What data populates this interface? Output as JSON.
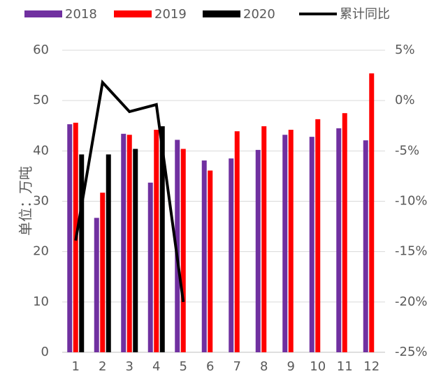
{
  "chart_data": {
    "type": "bar-line",
    "y_label": "单位：万吨",
    "categories": [
      "1",
      "2",
      "3",
      "4",
      "5",
      "6",
      "7",
      "8",
      "9",
      "10",
      "11",
      "12"
    ],
    "series": [
      {
        "name": "2018",
        "color": "#7030a0",
        "values": [
          45.3,
          26.7,
          43.4,
          33.7,
          42.2,
          38.1,
          38.5,
          40.2,
          43.2,
          42.8,
          44.5,
          42.1
        ]
      },
      {
        "name": "2019",
        "color": "#ff0000",
        "values": [
          45.6,
          31.7,
          43.2,
          44.2,
          40.4,
          36.1,
          43.9,
          44.9,
          44.2,
          46.3,
          47.5,
          55.4
        ]
      },
      {
        "name": "2020",
        "color": "#000000",
        "values": [
          39.3,
          39.3,
          40.4,
          44.9,
          null,
          null,
          null,
          null,
          null,
          null,
          null,
          null
        ]
      },
      {
        "name": "累计同比",
        "color": "#000000",
        "type": "line",
        "axis": "y2",
        "values": [
          -13.9,
          1.8,
          -1.1,
          -0.4,
          -20.0,
          null,
          null,
          null,
          null,
          null,
          null,
          null
        ]
      }
    ],
    "ylim": [
      0,
      60
    ],
    "yticks": [
      0,
      10,
      20,
      30,
      40,
      50,
      60
    ],
    "y2lim": [
      -25,
      5
    ],
    "y2ticks": [
      {
        "value": -25,
        "label": "-25%"
      },
      {
        "value": -20,
        "label": "-20%"
      },
      {
        "value": -15,
        "label": "-15%"
      },
      {
        "value": -10,
        "label": "-10%"
      },
      {
        "value": -5,
        "label": "-5%"
      },
      {
        "value": 0,
        "label": "0%"
      },
      {
        "value": 5,
        "label": "5%"
      }
    ],
    "grid": true,
    "legend": "top"
  }
}
